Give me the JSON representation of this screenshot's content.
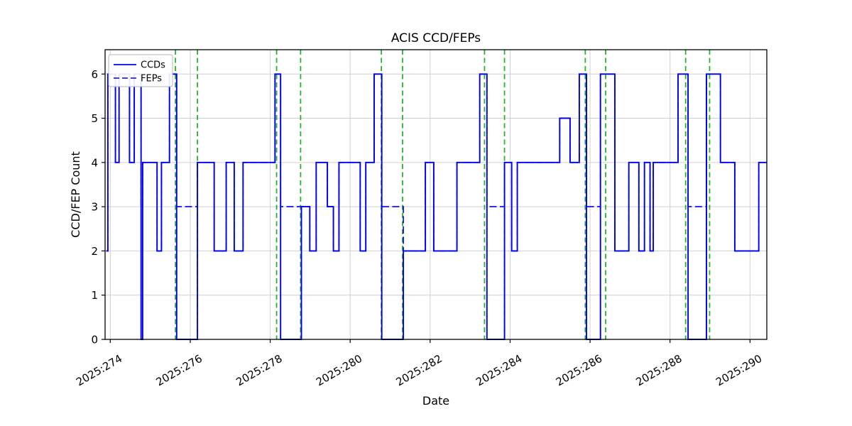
{
  "chart_data": {
    "type": "line",
    "subtype": "step",
    "title": "ACIS CCD/FEPs",
    "xlabel": "Date",
    "ylabel": "CCD/FEP Count",
    "xlim": [
      273.87,
      290.42
    ],
    "ylim": [
      0,
      6.55
    ],
    "grid": true,
    "legend_position": "upper left",
    "x_ticks": {
      "values": [
        274,
        276,
        278,
        280,
        282,
        284,
        286,
        288,
        290
      ],
      "labels": [
        "2025:274",
        "2025:276",
        "2025:278",
        "2025:280",
        "2025:282",
        "2025:284",
        "2025:286",
        "2025:288",
        "2025:290"
      ]
    },
    "y_ticks": [
      0,
      1,
      2,
      3,
      4,
      5,
      6
    ],
    "colors": {
      "line": "#0000ee",
      "vline": "#2cb22c",
      "grid": "#d0d0d0",
      "frame": "#000000"
    },
    "series": [
      {
        "name": "CCDs",
        "style": "solid",
        "steps": [
          [
            273.9,
            2
          ],
          [
            273.94,
            6
          ],
          [
            274.13,
            4
          ],
          [
            274.22,
            6
          ],
          [
            274.48,
            4
          ],
          [
            274.6,
            6
          ],
          [
            274.77,
            0
          ],
          [
            274.81,
            4
          ],
          [
            275.17,
            2
          ],
          [
            275.28,
            4
          ],
          [
            275.48,
            6
          ],
          [
            275.66,
            0
          ],
          [
            276.18,
            4
          ],
          [
            276.6,
            2
          ],
          [
            276.9,
            4
          ],
          [
            277.1,
            2
          ],
          [
            277.32,
            4
          ],
          [
            278.12,
            6
          ],
          [
            278.26,
            0
          ],
          [
            278.78,
            3
          ],
          [
            278.99,
            2
          ],
          [
            279.15,
            4
          ],
          [
            279.43,
            3
          ],
          [
            279.58,
            2
          ],
          [
            279.72,
            4
          ],
          [
            280.25,
            2
          ],
          [
            280.39,
            4
          ],
          [
            280.6,
            6
          ],
          [
            280.79,
            0
          ],
          [
            281.33,
            2
          ],
          [
            281.88,
            4
          ],
          [
            282.09,
            2
          ],
          [
            282.67,
            4
          ],
          [
            283.24,
            6
          ],
          [
            283.42,
            0
          ],
          [
            283.86,
            4
          ],
          [
            284.04,
            2
          ],
          [
            284.18,
            4
          ],
          [
            285.24,
            5
          ],
          [
            285.5,
            4
          ],
          [
            285.73,
            6
          ],
          [
            285.91,
            0
          ],
          [
            286.26,
            6
          ],
          [
            286.62,
            2
          ],
          [
            286.97,
            4
          ],
          [
            287.22,
            2
          ],
          [
            287.36,
            4
          ],
          [
            287.5,
            2
          ],
          [
            287.58,
            4
          ],
          [
            288.2,
            6
          ],
          [
            288.45,
            0
          ],
          [
            288.91,
            6
          ],
          [
            289.26,
            4
          ],
          [
            289.62,
            2
          ],
          [
            290.22,
            4
          ]
        ]
      },
      {
        "name": "FEPs",
        "style": "dashed",
        "steps": [
          [
            273.9,
            2
          ],
          [
            273.94,
            6
          ],
          [
            274.13,
            4
          ],
          [
            274.22,
            6
          ],
          [
            274.48,
            4
          ],
          [
            274.6,
            6
          ],
          [
            274.77,
            3
          ],
          [
            274.81,
            4
          ],
          [
            275.17,
            2
          ],
          [
            275.28,
            4
          ],
          [
            275.48,
            6
          ],
          [
            275.66,
            3
          ],
          [
            276.18,
            4
          ],
          [
            276.6,
            2
          ],
          [
            276.9,
            4
          ],
          [
            277.1,
            2
          ],
          [
            277.32,
            4
          ],
          [
            278.12,
            6
          ],
          [
            278.26,
            3
          ],
          [
            278.99,
            2
          ],
          [
            279.15,
            4
          ],
          [
            279.43,
            3
          ],
          [
            279.58,
            2
          ],
          [
            279.72,
            4
          ],
          [
            280.25,
            2
          ],
          [
            280.39,
            4
          ],
          [
            280.6,
            6
          ],
          [
            280.79,
            3
          ],
          [
            281.33,
            2
          ],
          [
            281.88,
            4
          ],
          [
            282.09,
            2
          ],
          [
            282.67,
            4
          ],
          [
            283.24,
            6
          ],
          [
            283.42,
            3
          ],
          [
            283.86,
            4
          ],
          [
            284.04,
            2
          ],
          [
            284.18,
            4
          ],
          [
            285.24,
            5
          ],
          [
            285.5,
            4
          ],
          [
            285.73,
            6
          ],
          [
            285.91,
            3
          ],
          [
            286.26,
            6
          ],
          [
            286.62,
            2
          ],
          [
            286.97,
            4
          ],
          [
            287.22,
            2
          ],
          [
            287.36,
            4
          ],
          [
            287.5,
            2
          ],
          [
            287.58,
            4
          ],
          [
            288.2,
            6
          ],
          [
            288.45,
            3
          ],
          [
            288.91,
            6
          ],
          [
            289.26,
            4
          ],
          [
            289.62,
            2
          ],
          [
            290.22,
            4
          ]
        ]
      }
    ],
    "vlines": [
      275.63,
      276.18,
      278.16,
      278.76,
      280.78,
      281.31,
      283.36,
      283.86,
      285.88,
      286.39,
      288.39,
      288.99
    ]
  }
}
